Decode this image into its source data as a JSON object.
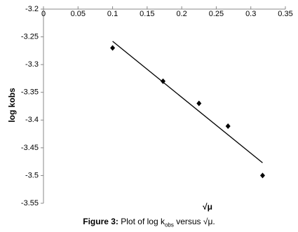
{
  "chart_data": {
    "type": "scatter",
    "x_label": "√μ",
    "y_label": "log kobs",
    "series": [
      {
        "color": "#000000",
        "x": [
          0.1,
          0.173,
          0.225,
          0.267,
          0.317
        ],
        "values": [
          -3.27,
          -3.33,
          -3.37,
          -3.411,
          -3.5
        ]
      }
    ],
    "trendline": {
      "color": "#000000",
      "x": [
        0.1,
        0.317
      ],
      "values": [
        -3.258,
        -3.477
      ]
    },
    "xlim": [
      0,
      0.35
    ],
    "xticks": [
      0,
      0.05,
      0.1,
      0.15,
      0.2,
      0.25,
      0.3,
      0.35
    ],
    "ylim": [
      -3.55,
      -3.2
    ],
    "yticks": [
      -3.2,
      -3.25,
      -3.3,
      -3.35,
      -3.4,
      -3.45,
      -3.5,
      -3.55
    ],
    "grid": false
  },
  "caption": {
    "label": "Figure 3:",
    "text": "Plot of log k",
    "subscript": "obs",
    "text_after": " versus √μ."
  }
}
